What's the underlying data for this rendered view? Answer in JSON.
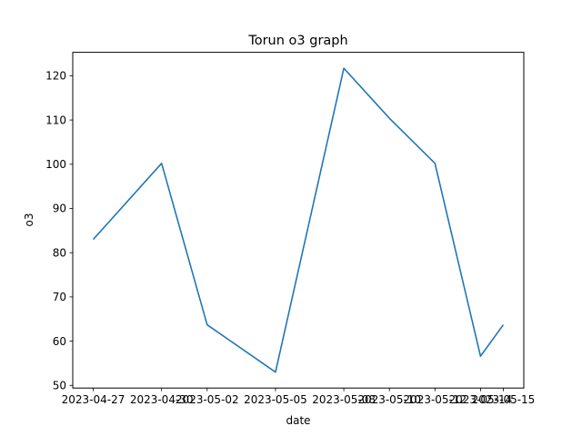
{
  "chart_data": {
    "type": "line",
    "title": "Torun o3 graph",
    "xlabel": "date",
    "ylabel": "o3",
    "x": [
      "2023-04-27",
      "2023-04-30",
      "2023-05-02",
      "2023-05-05",
      "2023-05-08",
      "2023-05-10",
      "2023-05-12",
      "2023-05-14",
      "2023-05-15"
    ],
    "xtick_labels": [
      "2023-04-27",
      "2023-04-30",
      "2023-05-02",
      "2023-05-05",
      "2023-05-08",
      "2023-05-10",
      "2023-05-12",
      "2023-05-14",
      "2023-05-15"
    ],
    "series": [
      {
        "values": [
          83.0,
          100.2,
          63.7,
          53.0,
          121.7,
          110.4,
          100.2,
          56.6,
          63.7
        ]
      }
    ],
    "yticks": [
      50,
      60,
      70,
      80,
      90,
      100,
      110,
      120
    ],
    "ylim": [
      49.4,
      125.3
    ],
    "grid": false,
    "legend": "none",
    "line_color": "#1f77b4"
  }
}
